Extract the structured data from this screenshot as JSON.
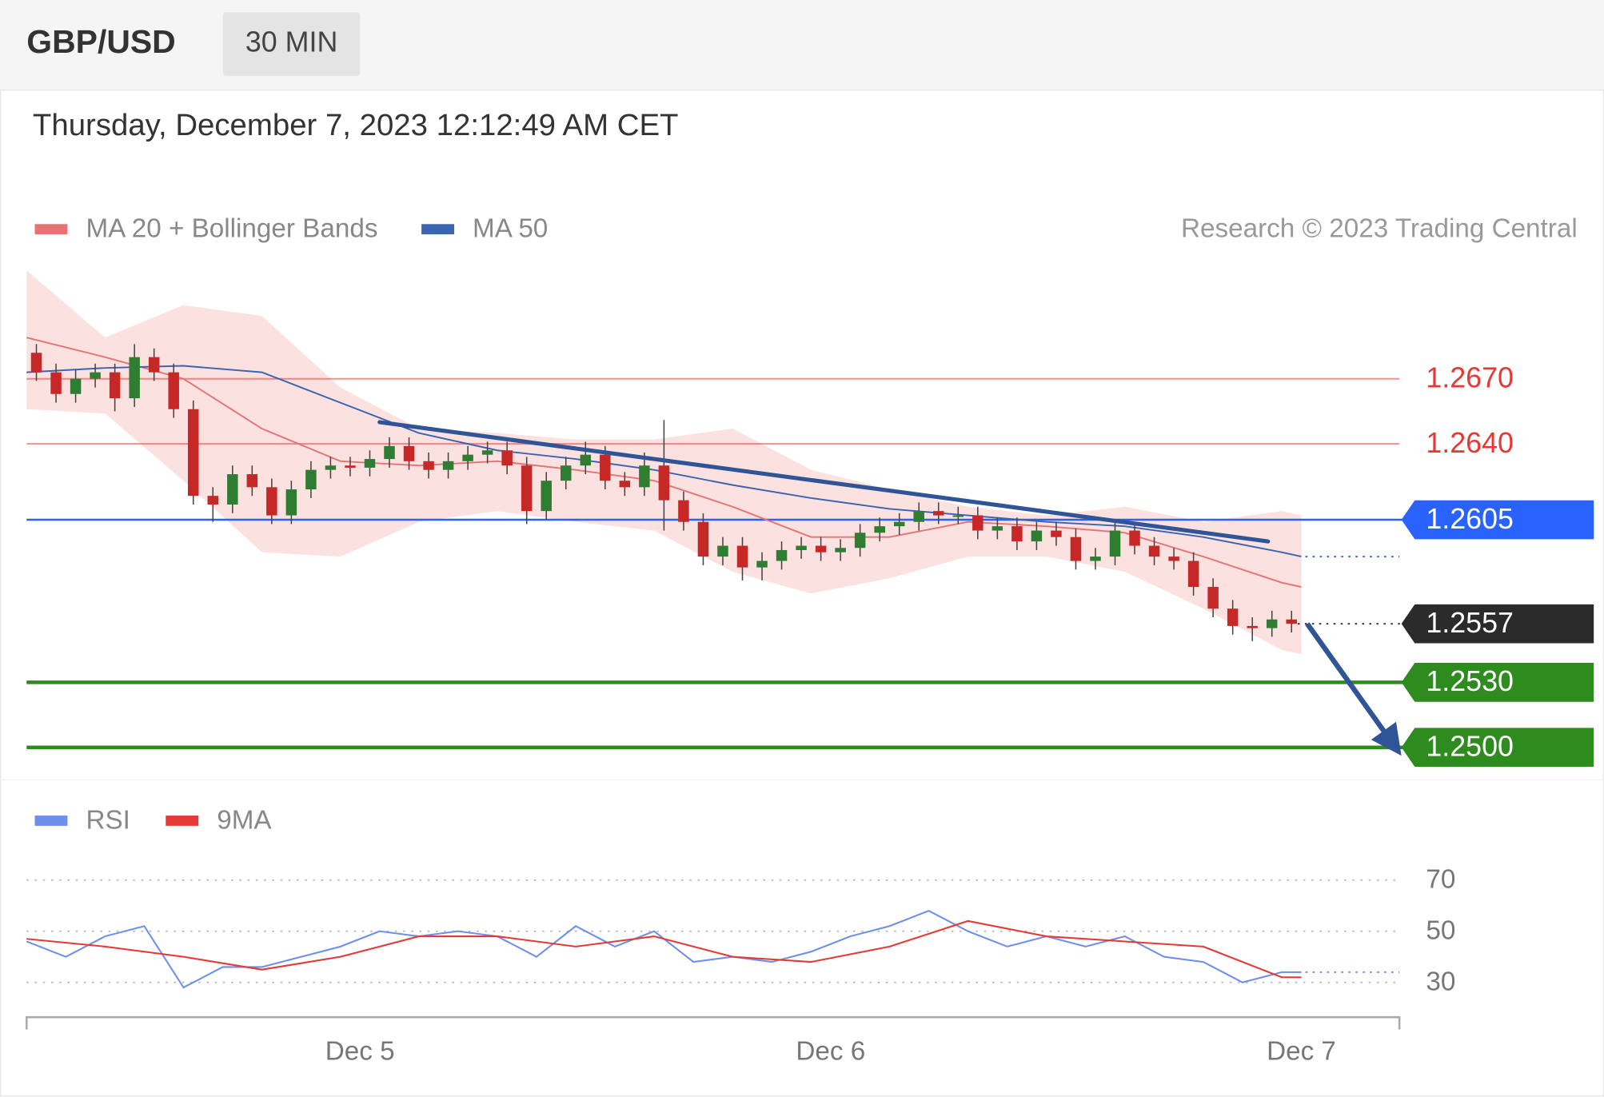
{
  "header": {
    "symbol": "GBP/USD",
    "interval": "30 MIN",
    "timestamp": "Thursday, December 7, 2023 12:12:49 AM CET"
  },
  "chart_data": [
    {
      "type": "candlestick",
      "source": "Research © 2023 Trading Central",
      "xlim": [
        0,
        70
      ],
      "ylim": [
        1.2486,
        1.2722
      ],
      "up_color": "#2e7d32",
      "down_color": "#c62828",
      "x": [
        0.5,
        1.5,
        2.5,
        3.5,
        4.5,
        5.5,
        6.5,
        7.5,
        8.5,
        9.5,
        10.5,
        11.5,
        12.5,
        13.5,
        14.5,
        15.5,
        16.5,
        17.5,
        18.5,
        19.5,
        20.5,
        21.5,
        22.5,
        23.5,
        24.5,
        25.5,
        26.5,
        27.5,
        28.5,
        29.5,
        30.5,
        31.5,
        32.5,
        33.5,
        34.5,
        35.5,
        36.5,
        37.5,
        38.5,
        39.5,
        40.5,
        41.5,
        42.5,
        43.5,
        44.5,
        45.5,
        46.5,
        47.5,
        48.5,
        49.5,
        50.5,
        51.5,
        52.5,
        53.5,
        54.5,
        55.5,
        56.5,
        57.5,
        58.5,
        59.5,
        60.5,
        61.5,
        62.5,
        63.5,
        64.5
      ],
      "open": [
        1.2682,
        1.2673,
        1.2663,
        1.267,
        1.2673,
        1.2661,
        1.268,
        1.2673,
        1.2656,
        1.2616,
        1.2612,
        1.2626,
        1.262,
        1.2607,
        1.2619,
        1.2628,
        1.263,
        1.2629,
        1.2633,
        1.2639,
        1.2632,
        1.2628,
        1.2632,
        1.2635,
        1.2637,
        1.263,
        1.2609,
        1.2623,
        1.263,
        1.2635,
        1.2623,
        1.262,
        1.263,
        1.2614,
        1.2604,
        1.2588,
        1.2593,
        1.2583,
        1.2586,
        1.2591,
        1.2593,
        1.259,
        1.2592,
        1.2599,
        1.2602,
        1.2604,
        1.2609,
        1.2607,
        1.2607,
        1.26,
        1.2602,
        1.2595,
        1.26,
        1.2597,
        1.2586,
        1.2588,
        1.26,
        1.2593,
        1.2588,
        1.2586,
        1.2574,
        1.2564,
        1.2556,
        1.2555,
        1.2559
      ],
      "high": [
        1.2686,
        1.2677,
        1.2674,
        1.2677,
        1.2677,
        1.2686,
        1.2684,
        1.2677,
        1.266,
        1.262,
        1.263,
        1.263,
        1.2624,
        1.2623,
        1.2632,
        1.2634,
        1.2634,
        1.2637,
        1.2643,
        1.2643,
        1.2636,
        1.2636,
        1.2639,
        1.2641,
        1.2641,
        1.2634,
        1.2627,
        1.2634,
        1.2641,
        1.2639,
        1.2627,
        1.2636,
        1.2651,
        1.2618,
        1.2608,
        1.2597,
        1.2597,
        1.259,
        1.2595,
        1.2597,
        1.2597,
        1.2596,
        1.2603,
        1.2606,
        1.2608,
        1.2613,
        1.2613,
        1.2611,
        1.2611,
        1.2606,
        1.2606,
        1.2604,
        1.2604,
        1.2601,
        1.2592,
        1.2604,
        1.2604,
        1.2597,
        1.2592,
        1.259,
        1.2578,
        1.2568,
        1.256,
        1.2563,
        1.2563
      ],
      "low": [
        1.2669,
        1.2659,
        1.2659,
        1.2666,
        1.2655,
        1.2657,
        1.2669,
        1.2652,
        1.2612,
        1.2604,
        1.2608,
        1.2616,
        1.2603,
        1.2603,
        1.2615,
        1.2624,
        1.2625,
        1.2625,
        1.2629,
        1.2628,
        1.2624,
        1.2624,
        1.2628,
        1.2631,
        1.2626,
        1.2603,
        1.2605,
        1.2619,
        1.2626,
        1.2619,
        1.2616,
        1.2616,
        1.26,
        1.26,
        1.2584,
        1.2584,
        1.2577,
        1.2577,
        1.2582,
        1.2587,
        1.2586,
        1.2586,
        1.2588,
        1.2595,
        1.2598,
        1.26,
        1.2603,
        1.2603,
        1.2596,
        1.2596,
        1.2591,
        1.2591,
        1.2593,
        1.2582,
        1.2582,
        1.2584,
        1.2589,
        1.2584,
        1.2582,
        1.257,
        1.256,
        1.2552,
        1.2549,
        1.2551,
        1.2553
      ],
      "close": [
        1.2673,
        1.2663,
        1.267,
        1.2673,
        1.2661,
        1.268,
        1.2673,
        1.2656,
        1.2616,
        1.2612,
        1.2626,
        1.262,
        1.2607,
        1.2619,
        1.2628,
        1.263,
        1.2629,
        1.2633,
        1.2639,
        1.2632,
        1.2628,
        1.2632,
        1.2635,
        1.2637,
        1.263,
        1.2609,
        1.2623,
        1.263,
        1.2635,
        1.2623,
        1.262,
        1.263,
        1.2614,
        1.2604,
        1.2588,
        1.2593,
        1.2583,
        1.2586,
        1.2591,
        1.2593,
        1.259,
        1.2592,
        1.2599,
        1.2602,
        1.2604,
        1.2609,
        1.2607,
        1.2607,
        1.26,
        1.2602,
        1.2595,
        1.26,
        1.2597,
        1.2586,
        1.2588,
        1.26,
        1.2593,
        1.2588,
        1.2586,
        1.2574,
        1.2564,
        1.2556,
        1.2555,
        1.2559,
        1.2557
      ],
      "series": [
        {
          "name": "MA 20 + Bollinger Bands",
          "color": "#e57373",
          "band_color": "#fbd7d7",
          "x": [
            0,
            4,
            8,
            12,
            16,
            20,
            24,
            28,
            32,
            36,
            40,
            44,
            48,
            52,
            56,
            60,
            64,
            65
          ],
          "values": [
            1.2689,
            1.268,
            1.267,
            1.2647,
            1.2632,
            1.263,
            1.2632,
            1.2628,
            1.2623,
            1.2611,
            1.2597,
            1.2597,
            1.2604,
            1.2602,
            1.2599,
            1.2588,
            1.2576,
            1.2574
          ],
          "upper": [
            1.272,
            1.2689,
            1.2704,
            1.2699,
            1.2666,
            1.2647,
            1.2645,
            1.2642,
            1.2642,
            1.2647,
            1.2628,
            1.2619,
            1.2611,
            1.2607,
            1.2611,
            1.2604,
            1.2609,
            1.2607
          ],
          "lower": [
            1.2656,
            1.2654,
            1.2623,
            1.259,
            1.2588,
            1.2604,
            1.2609,
            1.2604,
            1.26,
            1.2581,
            1.2571,
            1.2578,
            1.2588,
            1.2588,
            1.2581,
            1.2564,
            1.2545,
            1.2543
          ]
        },
        {
          "name": "MA 50",
          "color": "#3b64b0",
          "extend": true,
          "x": [
            0,
            4,
            8,
            12,
            16,
            20,
            24,
            28,
            32,
            36,
            40,
            44,
            48,
            52,
            56,
            60,
            64,
            65
          ],
          "values": [
            1.2673,
            1.2675,
            1.2676,
            1.2673,
            1.2659,
            1.2645,
            1.2637,
            1.2633,
            1.2628,
            1.2621,
            1.2615,
            1.261,
            1.2607,
            1.2604,
            1.2602,
            1.2597,
            1.259,
            1.2588
          ]
        }
      ],
      "levels": [
        {
          "value": 1.267,
          "label": "1.2670",
          "color": "#e53935",
          "tag": false,
          "width": 1.5
        },
        {
          "value": 1.264,
          "label": "1.2640",
          "color": "#e53935",
          "tag": false,
          "width": 1.5
        },
        {
          "value": 1.2605,
          "label": "1.2605",
          "color": "#2962ff",
          "tag": true,
          "width": 2
        },
        {
          "value": 1.2557,
          "label": "1.2557",
          "color": "#2b2b2b",
          "tag": true,
          "width": 2,
          "dotted": true
        },
        {
          "value": 1.253,
          "label": "1.2530",
          "color": "#2e8b1e",
          "tag": true,
          "width": 3.5
        },
        {
          "value": 1.25,
          "label": "1.2500",
          "color": "#2e8b1e",
          "tag": true,
          "width": 3.5
        }
      ],
      "trendline": {
        "color": "#2f5597",
        "x": [
          18,
          63.3
        ],
        "values": [
          1.265,
          1.2595
        ]
      },
      "arrow": {
        "color": "#2f5597",
        "x": [
          65.3,
          69.8
        ],
        "values": [
          1.2557,
          1.25
        ]
      }
    },
    {
      "type": "line",
      "xlim": [
        0,
        70
      ],
      "ylim": [
        18,
        78
      ],
      "yticks": [
        30,
        50,
        70
      ],
      "grid": true,
      "xticks": [
        {
          "value": 17,
          "label": "Dec 5"
        },
        {
          "value": 41,
          "label": "Dec 6"
        },
        {
          "value": 65,
          "label": "Dec 7"
        }
      ],
      "series": [
        {
          "name": "RSI",
          "color": "#6d8fea",
          "extend": true,
          "x": [
            0,
            2,
            4,
            6,
            8,
            10,
            12,
            14,
            16,
            18,
            20,
            22,
            24,
            26,
            28,
            30,
            32,
            34,
            36,
            38,
            40,
            42,
            44,
            46,
            48,
            50,
            52,
            54,
            56,
            58,
            60,
            62,
            64,
            65
          ],
          "values": [
            46,
            40,
            48,
            52,
            28,
            36,
            36,
            40,
            44,
            50,
            48,
            50,
            48,
            40,
            52,
            44,
            50,
            38,
            40,
            38,
            42,
            48,
            52,
            58,
            50,
            44,
            48,
            44,
            48,
            40,
            38,
            30,
            34,
            34
          ]
        },
        {
          "name": "9MA",
          "color": "#e53935",
          "x": [
            0,
            4,
            8,
            12,
            16,
            20,
            24,
            28,
            32,
            36,
            40,
            44,
            48,
            52,
            56,
            60,
            64,
            65
          ],
          "values": [
            47,
            44,
            40,
            35,
            40,
            48,
            48,
            44,
            48,
            40,
            38,
            44,
            54,
            48,
            46,
            44,
            32,
            32
          ]
        }
      ]
    }
  ]
}
